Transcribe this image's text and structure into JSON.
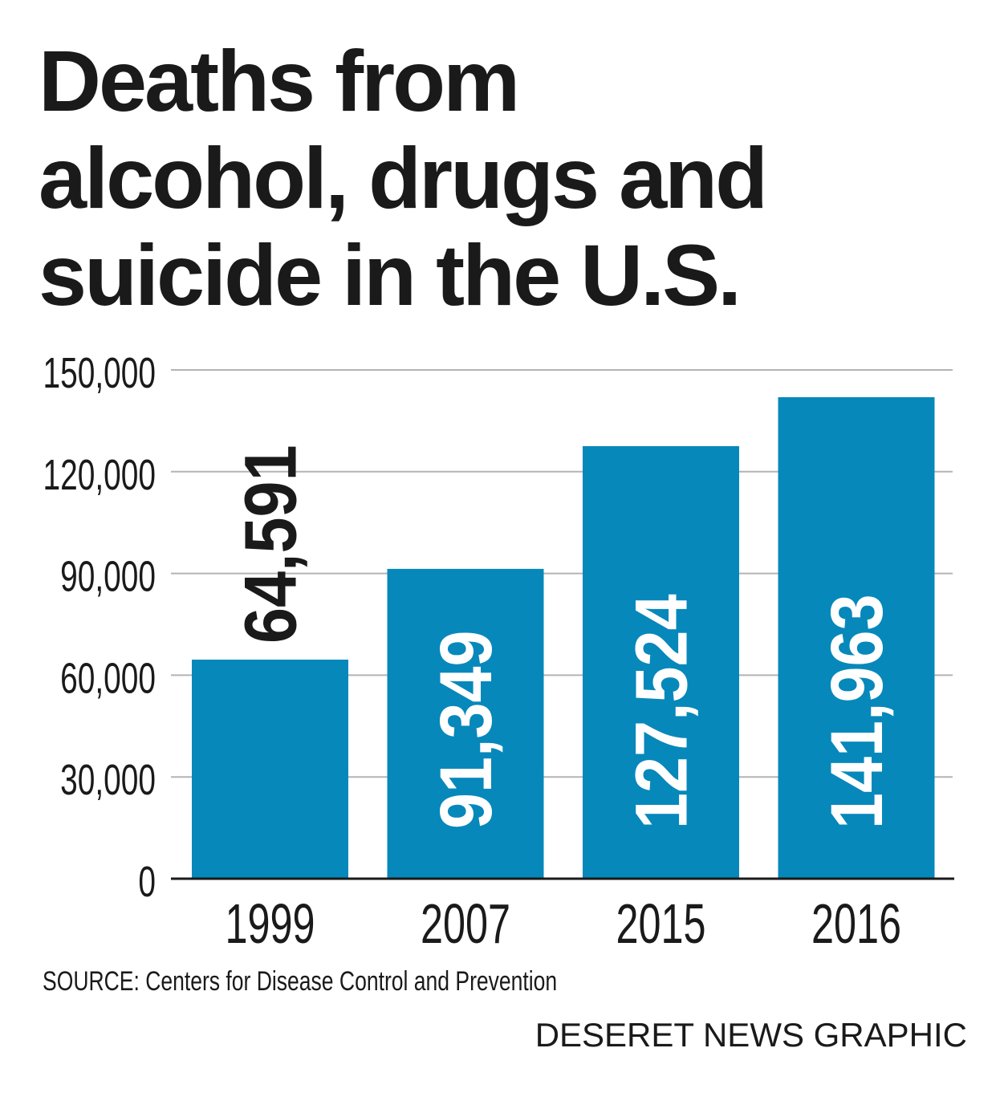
{
  "title_lines": [
    "Deaths from",
    "alcohol, drugs and",
    "suicide in the U.S."
  ],
  "source": "SOURCE: Centers for Disease Control and Prevention",
  "credit": "DESERET NEWS GRAPHIC",
  "colors": {
    "bar": "#0788bb",
    "text": "#1a1a1a",
    "grid": "#b3b3b3",
    "bar_label": "#ffffff"
  },
  "chart_data": {
    "type": "bar",
    "title": "Deaths from alcohol, drugs and suicide in the U.S.",
    "categories": [
      "1999",
      "2007",
      "2015",
      "2016"
    ],
    "values": [
      64591,
      91349,
      127524,
      141963
    ],
    "data_labels": [
      "64,591",
      "91,349",
      "127,524",
      "141,963"
    ],
    "yticks": [
      0,
      30000,
      60000,
      90000,
      120000,
      150000
    ],
    "ytick_labels": [
      "0",
      "30,000",
      "60,000",
      "90,000",
      "120,000",
      "150,000"
    ],
    "ylim": [
      0,
      150000
    ],
    "grid": true,
    "xlabel": "",
    "ylabel": ""
  }
}
